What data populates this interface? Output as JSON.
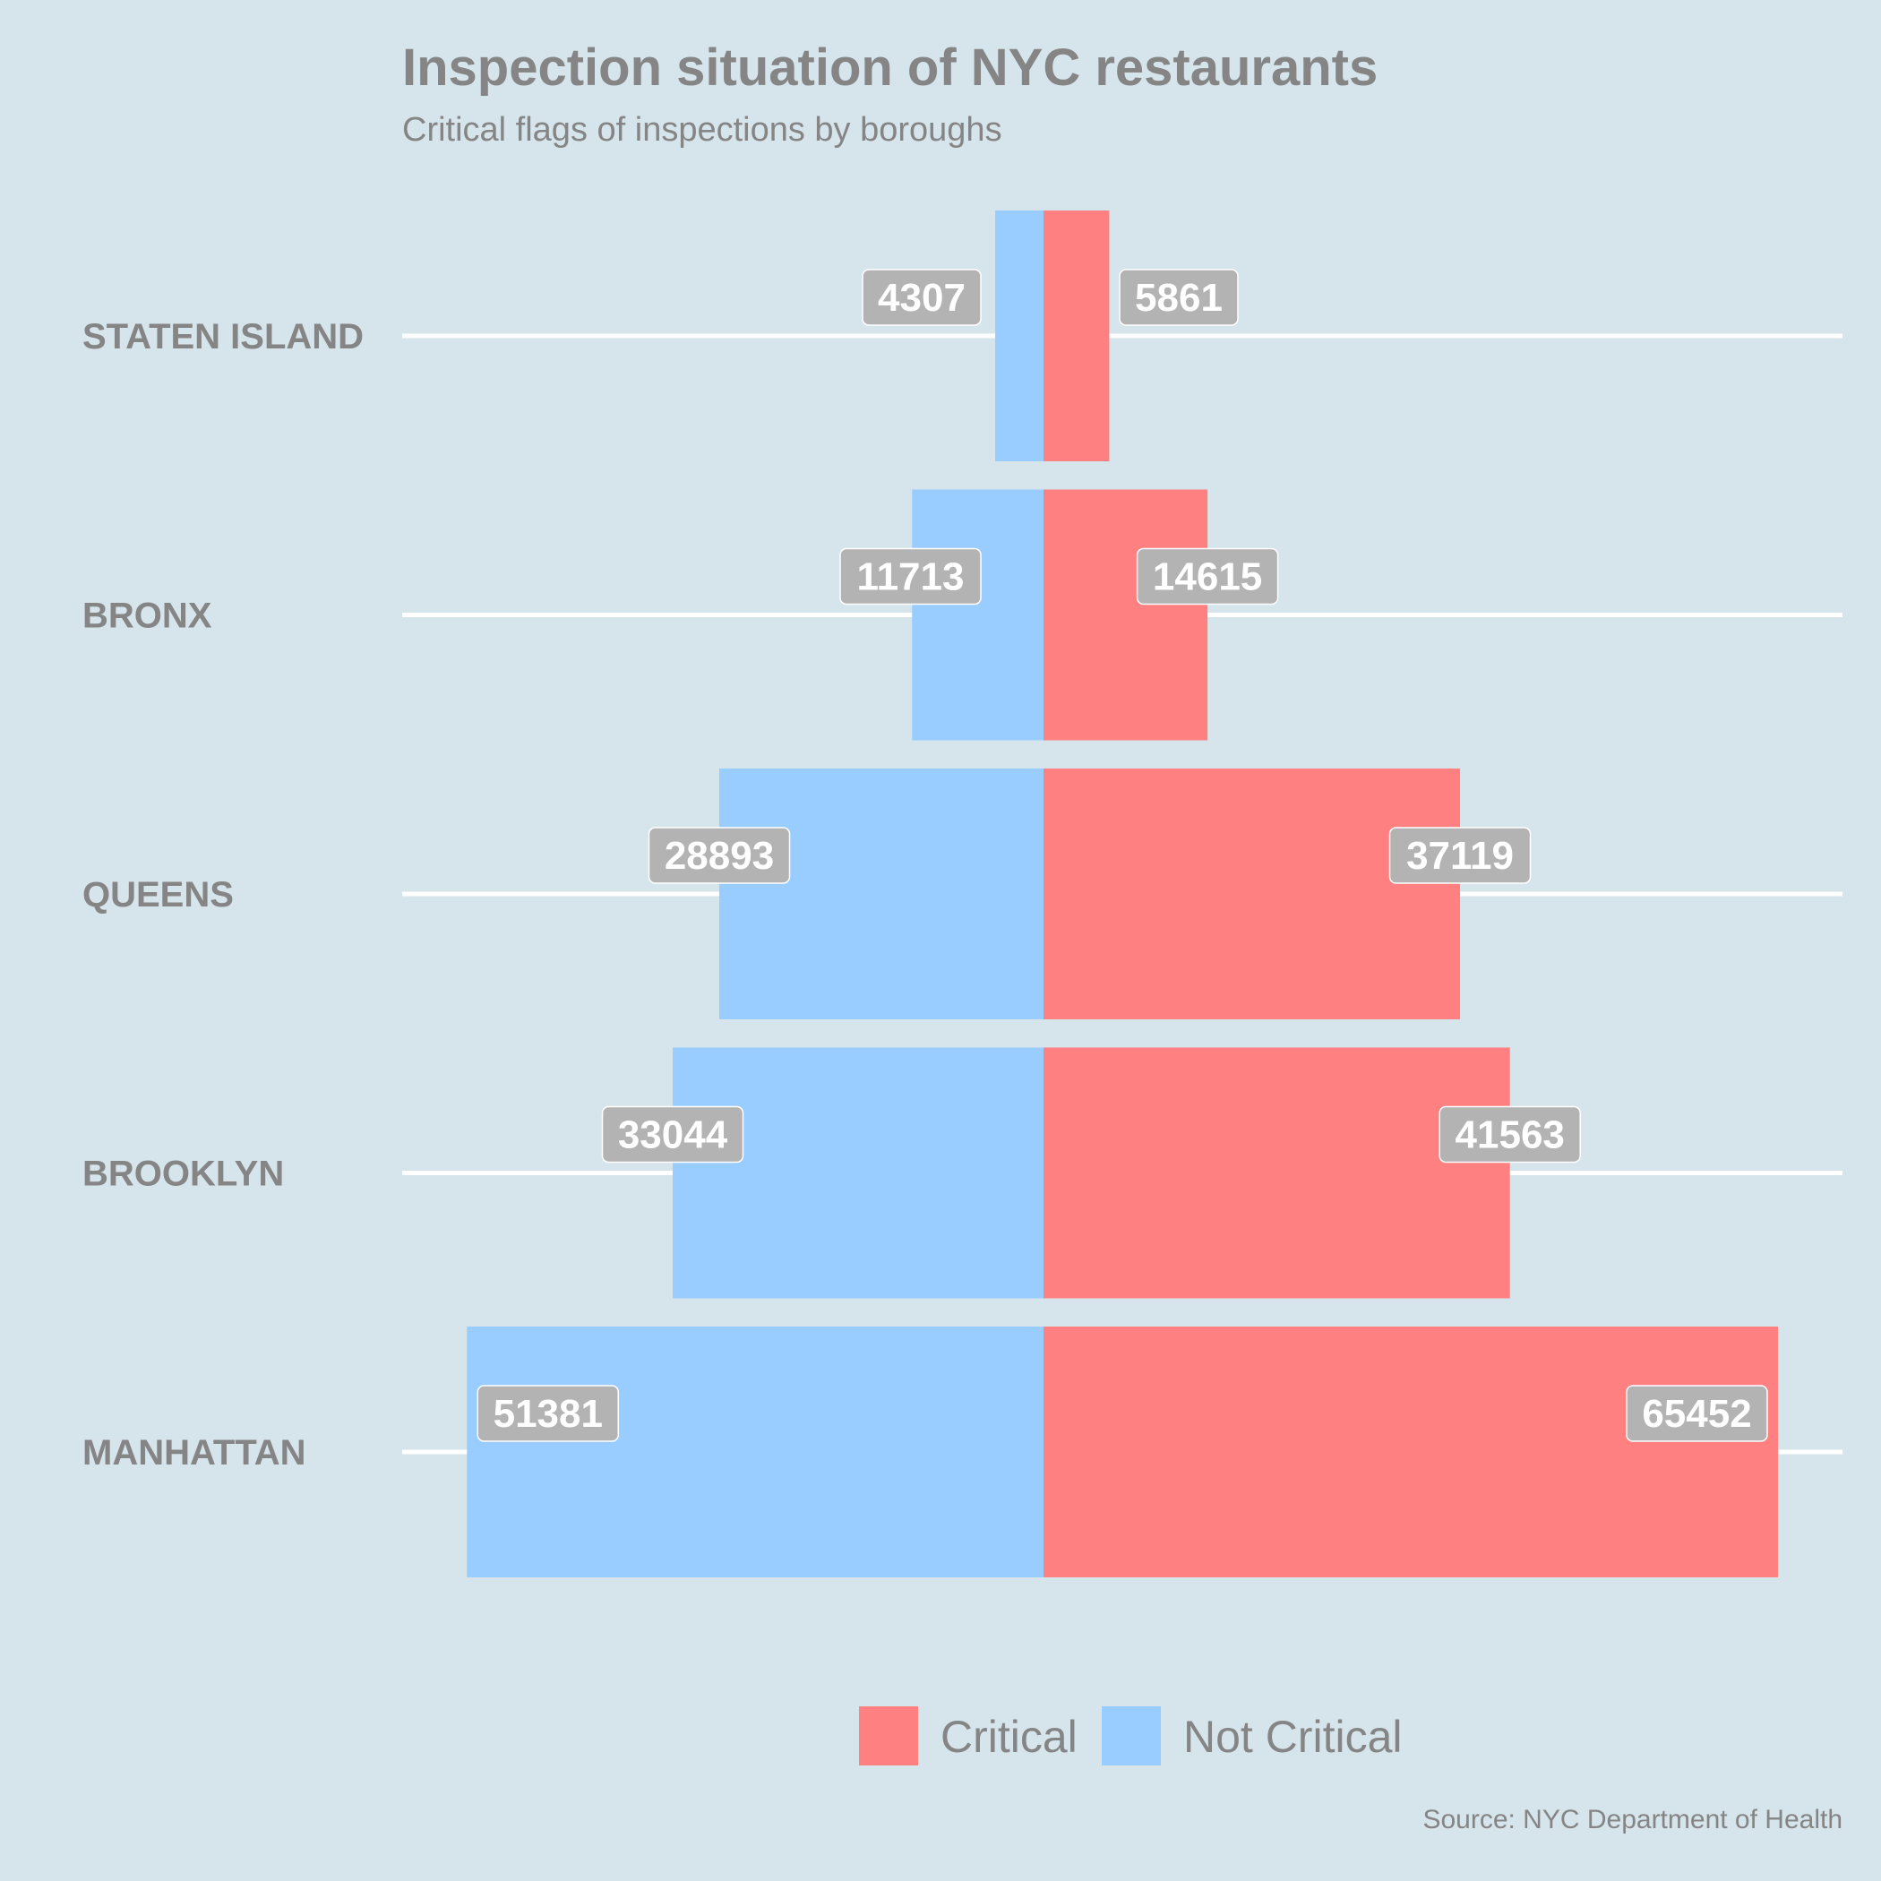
{
  "chart_data": {
    "type": "bar",
    "orientation": "horizontal-diverging",
    "title": "Inspection situation of NYC restaurants",
    "subtitle": "Critical flags of inspections by boroughs",
    "caption": "Source: NYC Department of Health",
    "categories": [
      "STATEN ISLAND",
      "BRONX",
      "QUEENS",
      "BROOKLYN",
      "MANHATTAN"
    ],
    "series": [
      {
        "name": "Critical",
        "color": "#FF8080",
        "side": "right",
        "values": [
          5861,
          14615,
          37119,
          41563,
          65452
        ]
      },
      {
        "name": "Not Critical",
        "color": "#99CCFF",
        "side": "left",
        "values": [
          4307,
          11713,
          28893,
          33044,
          51381
        ]
      }
    ],
    "legend": {
      "position": "bottom",
      "items": [
        "Critical",
        "Not Critical"
      ]
    },
    "grid": "horizontal",
    "xlim": [
      -65452,
      65452
    ],
    "label_box_color": "#B3B3B3"
  }
}
